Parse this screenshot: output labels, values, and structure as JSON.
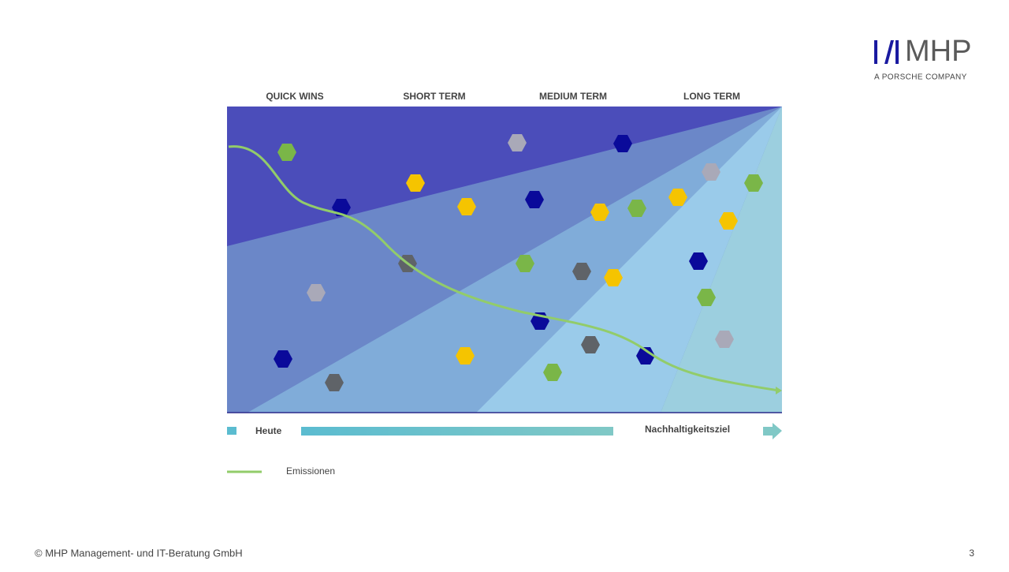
{
  "logo": {
    "name": "MHP",
    "tagline": "A PORSCHE COMPANY"
  },
  "phases": [
    "QUICK WINS",
    "SHORT TERM",
    "MEDIUM TERM",
    "LONG TERM"
  ],
  "timeline": {
    "start": "Heute",
    "end": "Nachhaltigkeitsziel"
  },
  "legend": {
    "line": "Emissionen"
  },
  "footer": {
    "copyright": "© MHP Management- und IT-Beratung GmbH",
    "page": "3"
  }
}
